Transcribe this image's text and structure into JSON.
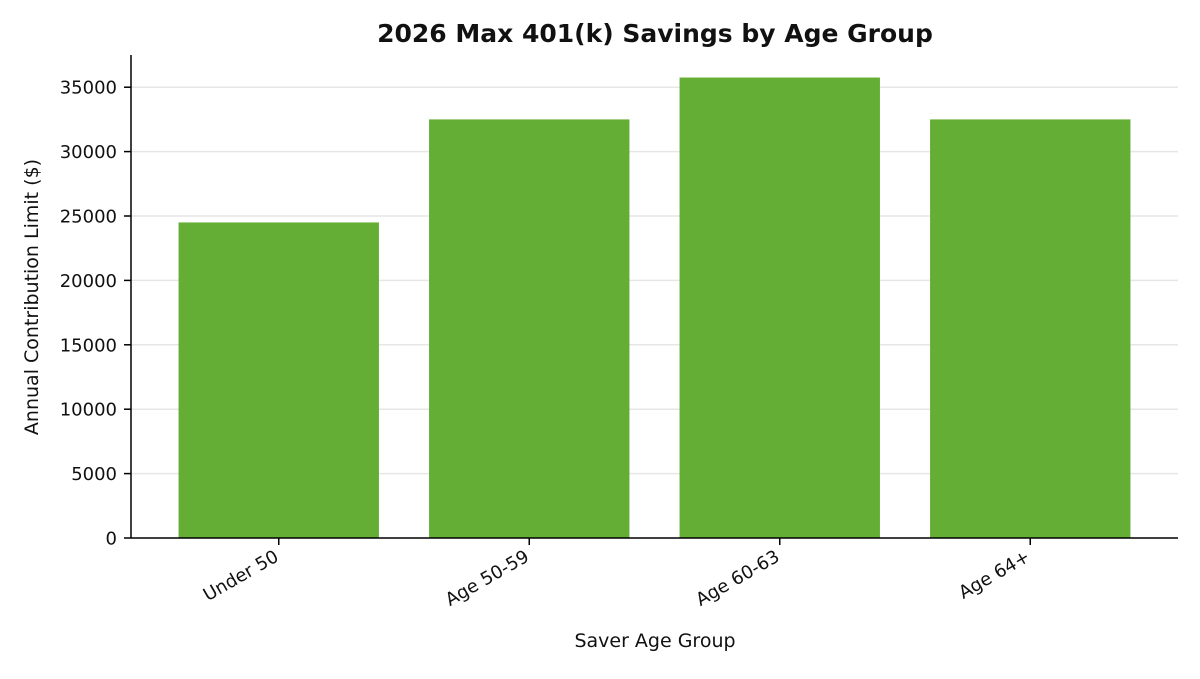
{
  "chart_data": {
    "type": "bar",
    "title": "2026 Max 401(k) Savings by Age Group",
    "xlabel": "Saver Age Group",
    "ylabel": "Annual Contribution Limit ($)",
    "categories": [
      "Under 50",
      "Age 50-59",
      "Age 60-63",
      "Age 64+"
    ],
    "values": [
      24500,
      32500,
      35750,
      32500
    ],
    "ylim": [
      0,
      37500
    ],
    "yticks": [
      0,
      5000,
      10000,
      15000,
      20000,
      25000,
      30000,
      35000
    ],
    "grid": "horizontal",
    "bar_color": "#64ae35",
    "legend": "none"
  }
}
